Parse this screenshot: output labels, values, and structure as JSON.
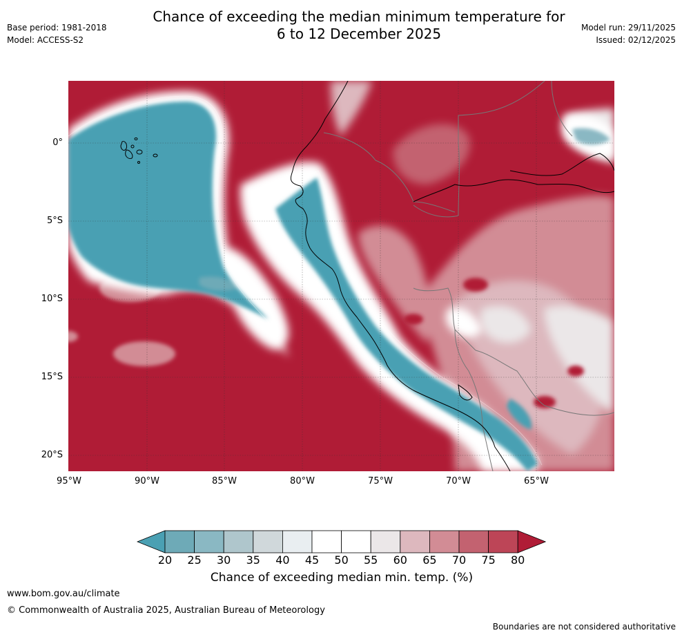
{
  "header": {
    "title_line1": "Chance of exceeding the median minimum temperature for",
    "title_line2": "6 to 12 December 2025",
    "base_period": "Base period: 1981-2018",
    "model": "Model: ACCESS-S2",
    "model_run": "Model run: 29/11/2025",
    "issued": "Issued: 02/12/2025"
  },
  "map": {
    "lat_labels": [
      "0°",
      "5°S",
      "10°S",
      "15°S",
      "20°S"
    ],
    "lon_labels": [
      "95°W",
      "90°W",
      "85°W",
      "80°W",
      "75°W",
      "70°W",
      "65°W"
    ]
  },
  "legend": {
    "ticks": [
      "20",
      "25",
      "30",
      "35",
      "40",
      "45",
      "50",
      "55",
      "60",
      "65",
      "70",
      "75",
      "80"
    ],
    "colors": [
      "#4aa0b3",
      "#6eaab7",
      "#8ab8c3",
      "#afc6cc",
      "#d0d8db",
      "#e9eef1",
      "#ffffff",
      "#ffffff",
      "#ebe7e8",
      "#ddb8be",
      "#d28c95",
      "#c36270",
      "#bd4557",
      "#b01c36"
    ],
    "label": "Chance of exceeding median min. temp. (%)"
  },
  "footer": {
    "website": "www.bom.gov.au/climate",
    "copyright": "© Commonwealth of Australia 2025, Australian Bureau of Meteorology",
    "disclaimer": "Boundaries are not considered authoritative"
  }
}
